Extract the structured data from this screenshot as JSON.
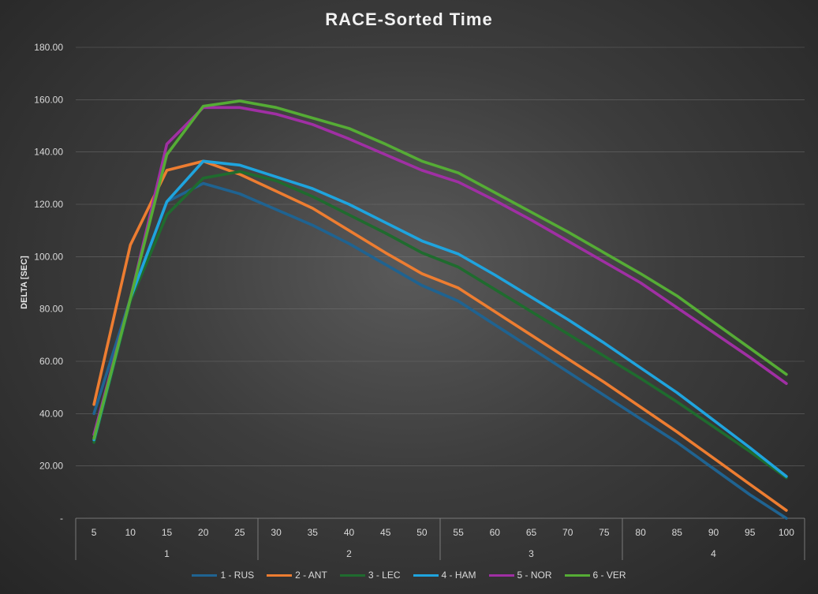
{
  "chart_data": {
    "type": "line",
    "title": "RACE-Sorted Time",
    "ylabel": "DELTA [SEC]",
    "xlabel": "",
    "ylim": [
      0,
      180
    ],
    "yticks": [
      "-",
      "20.00",
      "40.00",
      "60.00",
      "80.00",
      "100.00",
      "120.00",
      "140.00",
      "160.00",
      "180.00"
    ],
    "categories": [
      "5",
      "10",
      "15",
      "20",
      "25",
      "30",
      "35",
      "40",
      "45",
      "50",
      "55",
      "60",
      "65",
      "70",
      "75",
      "80",
      "85",
      "90",
      "95",
      "100"
    ],
    "groups": [
      {
        "label": "1",
        "start": 0,
        "end": 4
      },
      {
        "label": "2",
        "start": 5,
        "end": 9
      },
      {
        "label": "3",
        "start": 10,
        "end": 14
      },
      {
        "label": "4",
        "start": 15,
        "end": 19
      }
    ],
    "series": [
      {
        "name": "1 - RUS",
        "color": "#1f6391",
        "values": [
          40,
          84,
          121,
          128,
          124,
          118,
          112,
          105,
          97,
          89,
          83,
          74,
          65,
          56,
          47,
          38,
          29,
          19,
          9,
          0
        ]
      },
      {
        "name": "2 - ANT",
        "color": "#ed7d31",
        "values": [
          43.5,
          104.5,
          133,
          136.5,
          131.5,
          125,
          118.5,
          110,
          101.5,
          93.5,
          88,
          79,
          70,
          61,
          52,
          42.5,
          33,
          23,
          13,
          3
        ]
      },
      {
        "name": "3 - LEC",
        "color": "#1f6b2e",
        "values": [
          29,
          83,
          116,
          130,
          132.5,
          129,
          123,
          116,
          109,
          101.5,
          96,
          87.5,
          79,
          70.5,
          62,
          53.5,
          44.5,
          35,
          25.5,
          15.5
        ]
      },
      {
        "name": "4 - HAM",
        "color": "#1fa4de",
        "values": [
          30,
          84,
          121,
          136.5,
          135,
          130.5,
          126,
          120,
          113,
          106,
          101,
          93,
          84.5,
          76,
          67,
          57.5,
          48,
          37.5,
          27,
          16
        ]
      },
      {
        "name": "5 - NOR",
        "color": "#a02fa4",
        "values": [
          32,
          84,
          143,
          157,
          157,
          154.5,
          150.5,
          145,
          139,
          133,
          128.5,
          121.5,
          114,
          106,
          98,
          90,
          80.5,
          71,
          61.5,
          51.5
        ]
      },
      {
        "name": "6 - VER",
        "color": "#55ac35",
        "values": [
          30.5,
          84,
          139,
          157.5,
          159.5,
          157,
          153,
          149,
          143,
          136.5,
          132,
          124.5,
          117,
          109.5,
          101.5,
          93.5,
          85,
          75,
          65,
          55
        ]
      }
    ]
  }
}
